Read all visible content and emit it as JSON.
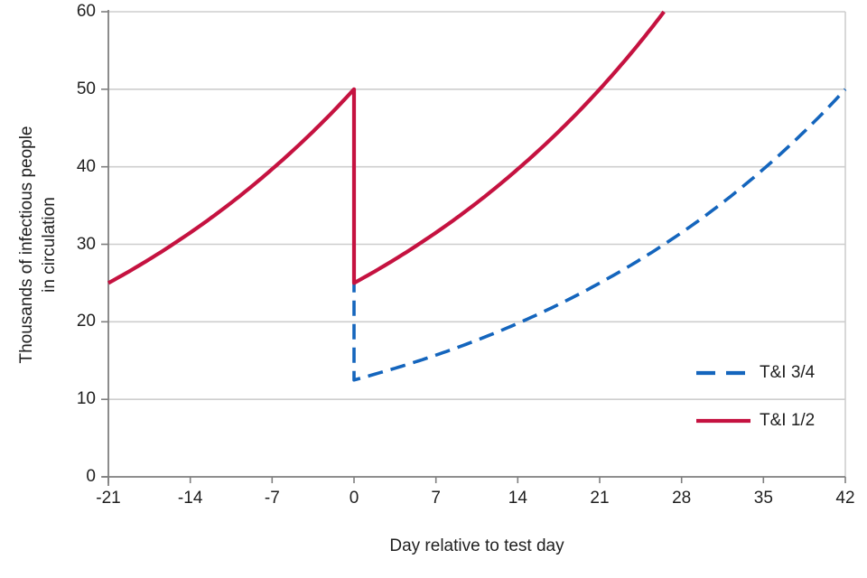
{
  "chart_data": {
    "type": "line",
    "title": "",
    "xlabel": "Day relative to test day",
    "ylabel": "Thousands of infectious people in circulation",
    "ylabel_lines": [
      "Thousands of infectious people",
      "in circulation"
    ],
    "xlim": [
      -21,
      42
    ],
    "ylim": [
      0,
      60
    ],
    "xticks": [
      -21,
      -14,
      -7,
      0,
      7,
      14,
      21,
      28,
      35,
      42
    ],
    "yticks": [
      0,
      10,
      20,
      30,
      40,
      50,
      60
    ],
    "grid": "horizontal gridlines every 10, light gray, right plot border shown",
    "legend_position": "inside right",
    "series": [
      {
        "name": "T&I 3/4",
        "color": "#1465BD",
        "line_style": "dashed",
        "interpolation": "exponential",
        "points_x": [
          0,
          0,
          7,
          14,
          21,
          28,
          35,
          42
        ],
        "points_y": [
          50,
          12.5,
          15.7,
          19.8,
          25,
          31.5,
          39.7,
          50
        ]
      },
      {
        "name": "T&I 1/2",
        "color": "#C51240",
        "line_style": "solid",
        "interpolation": "exponential",
        "points_x": [
          -21,
          -14,
          -7,
          0,
          0,
          7,
          14,
          21,
          26.5
        ],
        "points_y": [
          25,
          31.5,
          39.7,
          50,
          25,
          31.5,
          39.7,
          50,
          60
        ]
      }
    ],
    "colors": {
      "axis": "#7F7F7F",
      "gridline": "#CECECE",
      "text": "#1F1F1F"
    }
  }
}
